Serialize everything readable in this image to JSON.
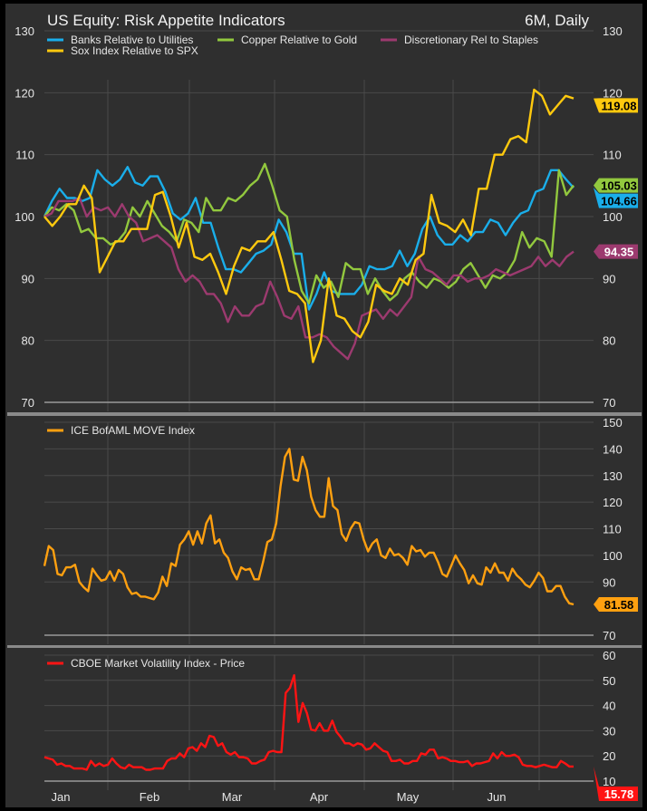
{
  "title": "US Equity: Risk Appetite Indicators",
  "period": "6M, Daily",
  "colors": {
    "bg": "#2f2f2f",
    "grid": "#4a4a4a",
    "text": "#e6e6e6"
  },
  "chart_data": [
    {
      "type": "line",
      "title": "US Equity: Risk Appetite Indicators",
      "ylim": [
        70,
        130
      ],
      "yticks": [
        70,
        80,
        90,
        100,
        110,
        120,
        130
      ],
      "left_axis": true,
      "legend": "top-left",
      "series": [
        {
          "name": "Banks Relative to Utilities",
          "color": "#1aaeea",
          "last": "104.66",
          "values": [
            100,
            102.5,
            104.5,
            103,
            103,
            102.5,
            103,
            107.5,
            106,
            105,
            106,
            108,
            105.5,
            105,
            106.5,
            106.5,
            104,
            100.5,
            99.5,
            100.5,
            103,
            99,
            99,
            95,
            91.5,
            91.5,
            91,
            92.5,
            94,
            94.5,
            95.5,
            99.5,
            97.5,
            94,
            94,
            85,
            87.5,
            91,
            88,
            87.5,
            87.5,
            87.5,
            89,
            92,
            91.5,
            91.5,
            92,
            94.5,
            92,
            94,
            98,
            100,
            97,
            95.5,
            95.5,
            97,
            96,
            97.5,
            97.5,
            99.5,
            99,
            97,
            99,
            100.5,
            101,
            104,
            104.5,
            107.5,
            107.5,
            106,
            104.66
          ]
        },
        {
          "name": "Copper Relative to Gold",
          "color": "#92c83e",
          "last": "105.03",
          "values": [
            100,
            101.5,
            101,
            102,
            101,
            97.5,
            98,
            96.5,
            96.5,
            95.5,
            96,
            97.5,
            101.5,
            100,
            102.5,
            100.5,
            98.5,
            97.5,
            96,
            99.5,
            99,
            97.5,
            103,
            101,
            101,
            103,
            102.5,
            103.5,
            105,
            106,
            108.5,
            105,
            101,
            100,
            93,
            88,
            86,
            90.5,
            88.5,
            89.5,
            87,
            92.5,
            91.5,
            91.5,
            87.5,
            90,
            88,
            86.5,
            87.5,
            90,
            91,
            89.5,
            88.5,
            90,
            89.5,
            88.5,
            89.5,
            91.5,
            92.5,
            90.5,
            88.5,
            90.5,
            90,
            91,
            93,
            97.5,
            95,
            96.5,
            96,
            93.5,
            107.5,
            103.5,
            105.03
          ]
        },
        {
          "name": "Discretionary Rel to Staples",
          "color": "#9c3a6f",
          "last": "94.35",
          "values": [
            100,
            100.5,
            102.5,
            102.5,
            102.5,
            103,
            100,
            101.5,
            101,
            101.5,
            100,
            102,
            100,
            99,
            96,
            96.5,
            97,
            96,
            95,
            91.5,
            89.5,
            90.5,
            89.5,
            87.5,
            87.5,
            86,
            83,
            85.5,
            84,
            84,
            85.5,
            86,
            89.5,
            87,
            84,
            83.5,
            85.5,
            80.5,
            80.5,
            81,
            80.5,
            79,
            78,
            77,
            79.5,
            84,
            84.5,
            85,
            83.5,
            85,
            84,
            85.5,
            87,
            93.5,
            91.5,
            91,
            90,
            89,
            90.5,
            90.5,
            89.5,
            90,
            90,
            90.5,
            91.5,
            91,
            90.5,
            91,
            91.5,
            92,
            93.5,
            92,
            93,
            92,
            93.5,
            94.35
          ]
        },
        {
          "name": "Sox Index Relative to SPX",
          "color": "#ffc90e",
          "last": "119.08",
          "values": [
            100,
            98.5,
            100,
            102,
            102,
            105,
            103,
            91,
            93.5,
            96,
            96,
            98,
            98,
            98,
            103.5,
            104,
            100,
            95,
            99,
            93.5,
            93,
            94,
            91,
            87.5,
            92,
            95,
            94.5,
            96,
            96,
            97.5,
            93,
            88,
            87.5,
            86,
            76.5,
            80,
            90,
            84,
            83.5,
            81.5,
            80.5,
            83,
            89,
            88,
            87.5,
            90,
            89,
            93,
            94,
            103.5,
            99,
            98.5,
            97.5,
            99.5,
            97,
            104.5,
            104.5,
            110,
            110,
            112.5,
            113,
            112,
            120.5,
            119.5,
            116.5,
            118,
            119.5,
            119.08
          ]
        }
      ]
    },
    {
      "type": "line",
      "ylim": [
        70,
        150
      ],
      "yticks": [
        70,
        90,
        100,
        110,
        120,
        130,
        140,
        150
      ],
      "legend": "top-left",
      "series": [
        {
          "name": "ICE BofAML MOVE Index",
          "color": "#ffa010",
          "last": "81.58",
          "values": [
            96,
            103.5,
            102,
            93,
            92.5,
            95.5,
            95.5,
            96.5,
            90,
            88,
            86.5,
            95,
            92.5,
            90.5,
            91,
            94,
            90.5,
            94.5,
            93,
            88,
            85.5,
            86,
            84.5,
            84.5,
            84,
            83.5,
            86,
            92,
            88.5,
            97,
            96,
            104,
            106,
            109,
            104,
            109,
            104.5,
            112,
            115,
            104.5,
            106,
            101,
            99,
            94,
            91,
            95.5,
            94.5,
            95,
            91,
            91,
            97.5,
            105,
            106,
            112,
            126,
            137,
            140,
            128.5,
            128,
            137,
            132,
            122,
            117,
            114.5,
            114.5,
            129,
            118.5,
            117,
            108,
            105.5,
            110,
            112.5,
            112,
            106,
            101.5,
            104.5,
            106,
            100,
            99,
            102.5,
            100,
            100.5,
            99,
            96.5,
            103.5,
            101.5,
            102,
            99.5,
            101,
            101,
            97.5,
            93,
            92,
            96,
            100,
            97,
            94.5,
            89.5,
            92.5,
            89.5,
            89,
            95.5,
            93.5,
            97,
            93.5,
            93.5,
            90.5,
            95,
            92.5,
            91,
            89,
            88,
            90.5,
            93.5,
            91.5,
            86.5,
            86.5,
            88.5,
            88.5,
            84.5,
            82,
            81.58
          ]
        }
      ]
    },
    {
      "type": "line",
      "ylim": [
        10,
        60
      ],
      "yticks": [
        10,
        20,
        30,
        40,
        50,
        60
      ],
      "legend": "top-left",
      "xticks": [
        "Jan",
        "Feb",
        "Mar",
        "Apr",
        "May",
        "Jun"
      ],
      "series": [
        {
          "name": "CBOE Market Volatility Index - Price",
          "color": "#ff1414",
          "last": "15.78",
          "values": [
            19.5,
            19,
            18.5,
            16.5,
            17,
            16,
            16,
            15,
            15,
            15,
            14.5,
            18,
            16,
            17,
            16,
            16.5,
            19,
            17,
            15.5,
            15,
            16.5,
            15.5,
            15.5,
            15.5,
            14.5,
            14.5,
            15,
            15,
            15,
            18,
            19,
            19,
            21,
            19.5,
            23,
            23.5,
            22,
            25,
            23.5,
            28,
            27.5,
            24,
            25,
            21.5,
            20.5,
            21.5,
            19.5,
            19.5,
            19,
            17,
            17,
            18,
            18.5,
            21.5,
            22,
            21.5,
            21.5,
            45,
            47,
            52,
            33.5,
            41,
            37,
            30.5,
            30,
            33,
            30,
            30,
            34,
            29.5,
            27.5,
            25,
            25,
            24,
            25,
            24.5,
            22.5,
            23,
            25,
            23.5,
            22,
            21.5,
            18,
            18,
            18.5,
            17,
            17,
            18,
            18,
            21,
            20.5,
            22.5,
            22.5,
            19,
            19.5,
            19,
            18,
            18,
            17.5,
            17.5,
            18,
            16,
            17,
            17,
            17.5,
            18,
            21,
            19,
            21.5,
            20,
            20,
            20.5,
            19.5,
            16.5,
            16,
            16,
            15.5,
            16,
            16.5,
            16,
            15.5,
            15.5,
            18,
            17,
            15.78,
            15.78
          ]
        }
      ]
    }
  ]
}
